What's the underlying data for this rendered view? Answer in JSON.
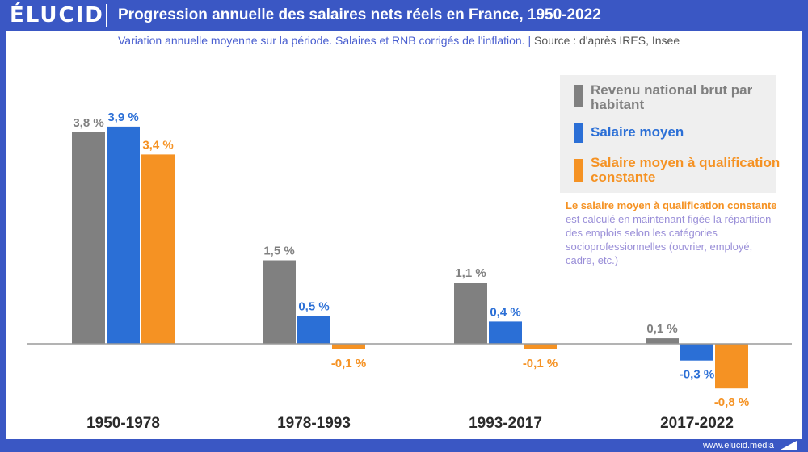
{
  "header": {
    "logo": "ÉLUCID",
    "title": "Progression annuelle des salaires nets réels en France, 1950-2022"
  },
  "subtitle": {
    "main": "Variation annuelle moyenne sur la période. Salaires et RNB corrigés de l'inflation. |",
    "source": "Source : d'après IRES, Insee"
  },
  "colors": {
    "brand": "#3a57c4",
    "rnb": "#808080",
    "salaire": "#2b6fd6",
    "qualif": "#f59223",
    "note_text": "#9a8fd8"
  },
  "legend": [
    {
      "label": "Revenu national brut par habitant",
      "color": "#808080"
    },
    {
      "label": "Salaire moyen",
      "color": "#2b6fd6"
    },
    {
      "label": "Salaire moyen à qualification constante",
      "color": "#f59223"
    }
  ],
  "note": {
    "bold": "Le salaire moyen à qualification constante",
    "rest": " est calculé en maintenant figée la répartition des emplois selon les catégories socioprofessionnelles (ouvrier, employé, cadre, etc.)"
  },
  "chart_data": {
    "type": "bar",
    "title": "Progression annuelle des salaires nets réels en France, 1950-2022",
    "categories": [
      "1950-1978",
      "1978-1993",
      "1993-2017",
      "2017-2022"
    ],
    "series": [
      {
        "name": "Revenu national brut par habitant",
        "color": "#808080",
        "values": [
          3.8,
          1.5,
          1.1,
          0.1
        ],
        "labels": [
          "3,8 %",
          "1,5 %",
          "1,1 %",
          "0,1 %"
        ]
      },
      {
        "name": "Salaire moyen",
        "color": "#2b6fd6",
        "values": [
          3.9,
          0.5,
          0.4,
          -0.3
        ],
        "labels": [
          "3,9 %",
          "0,5 %",
          "0,4 %",
          "-0,3 %"
        ]
      },
      {
        "name": "Salaire moyen à qualification constante",
        "color": "#f59223",
        "values": [
          3.4,
          -0.1,
          -0.1,
          -0.8
        ],
        "labels": [
          "3,4 %",
          "-0,1 %",
          "-0,1 %",
          "-0,8 %"
        ]
      }
    ],
    "xlabel": "",
    "ylabel": "",
    "ylim": [
      -0.8,
      3.9
    ],
    "grid": false,
    "legend_position": "top-right"
  },
  "footer": {
    "url": "www.elucid.media"
  }
}
